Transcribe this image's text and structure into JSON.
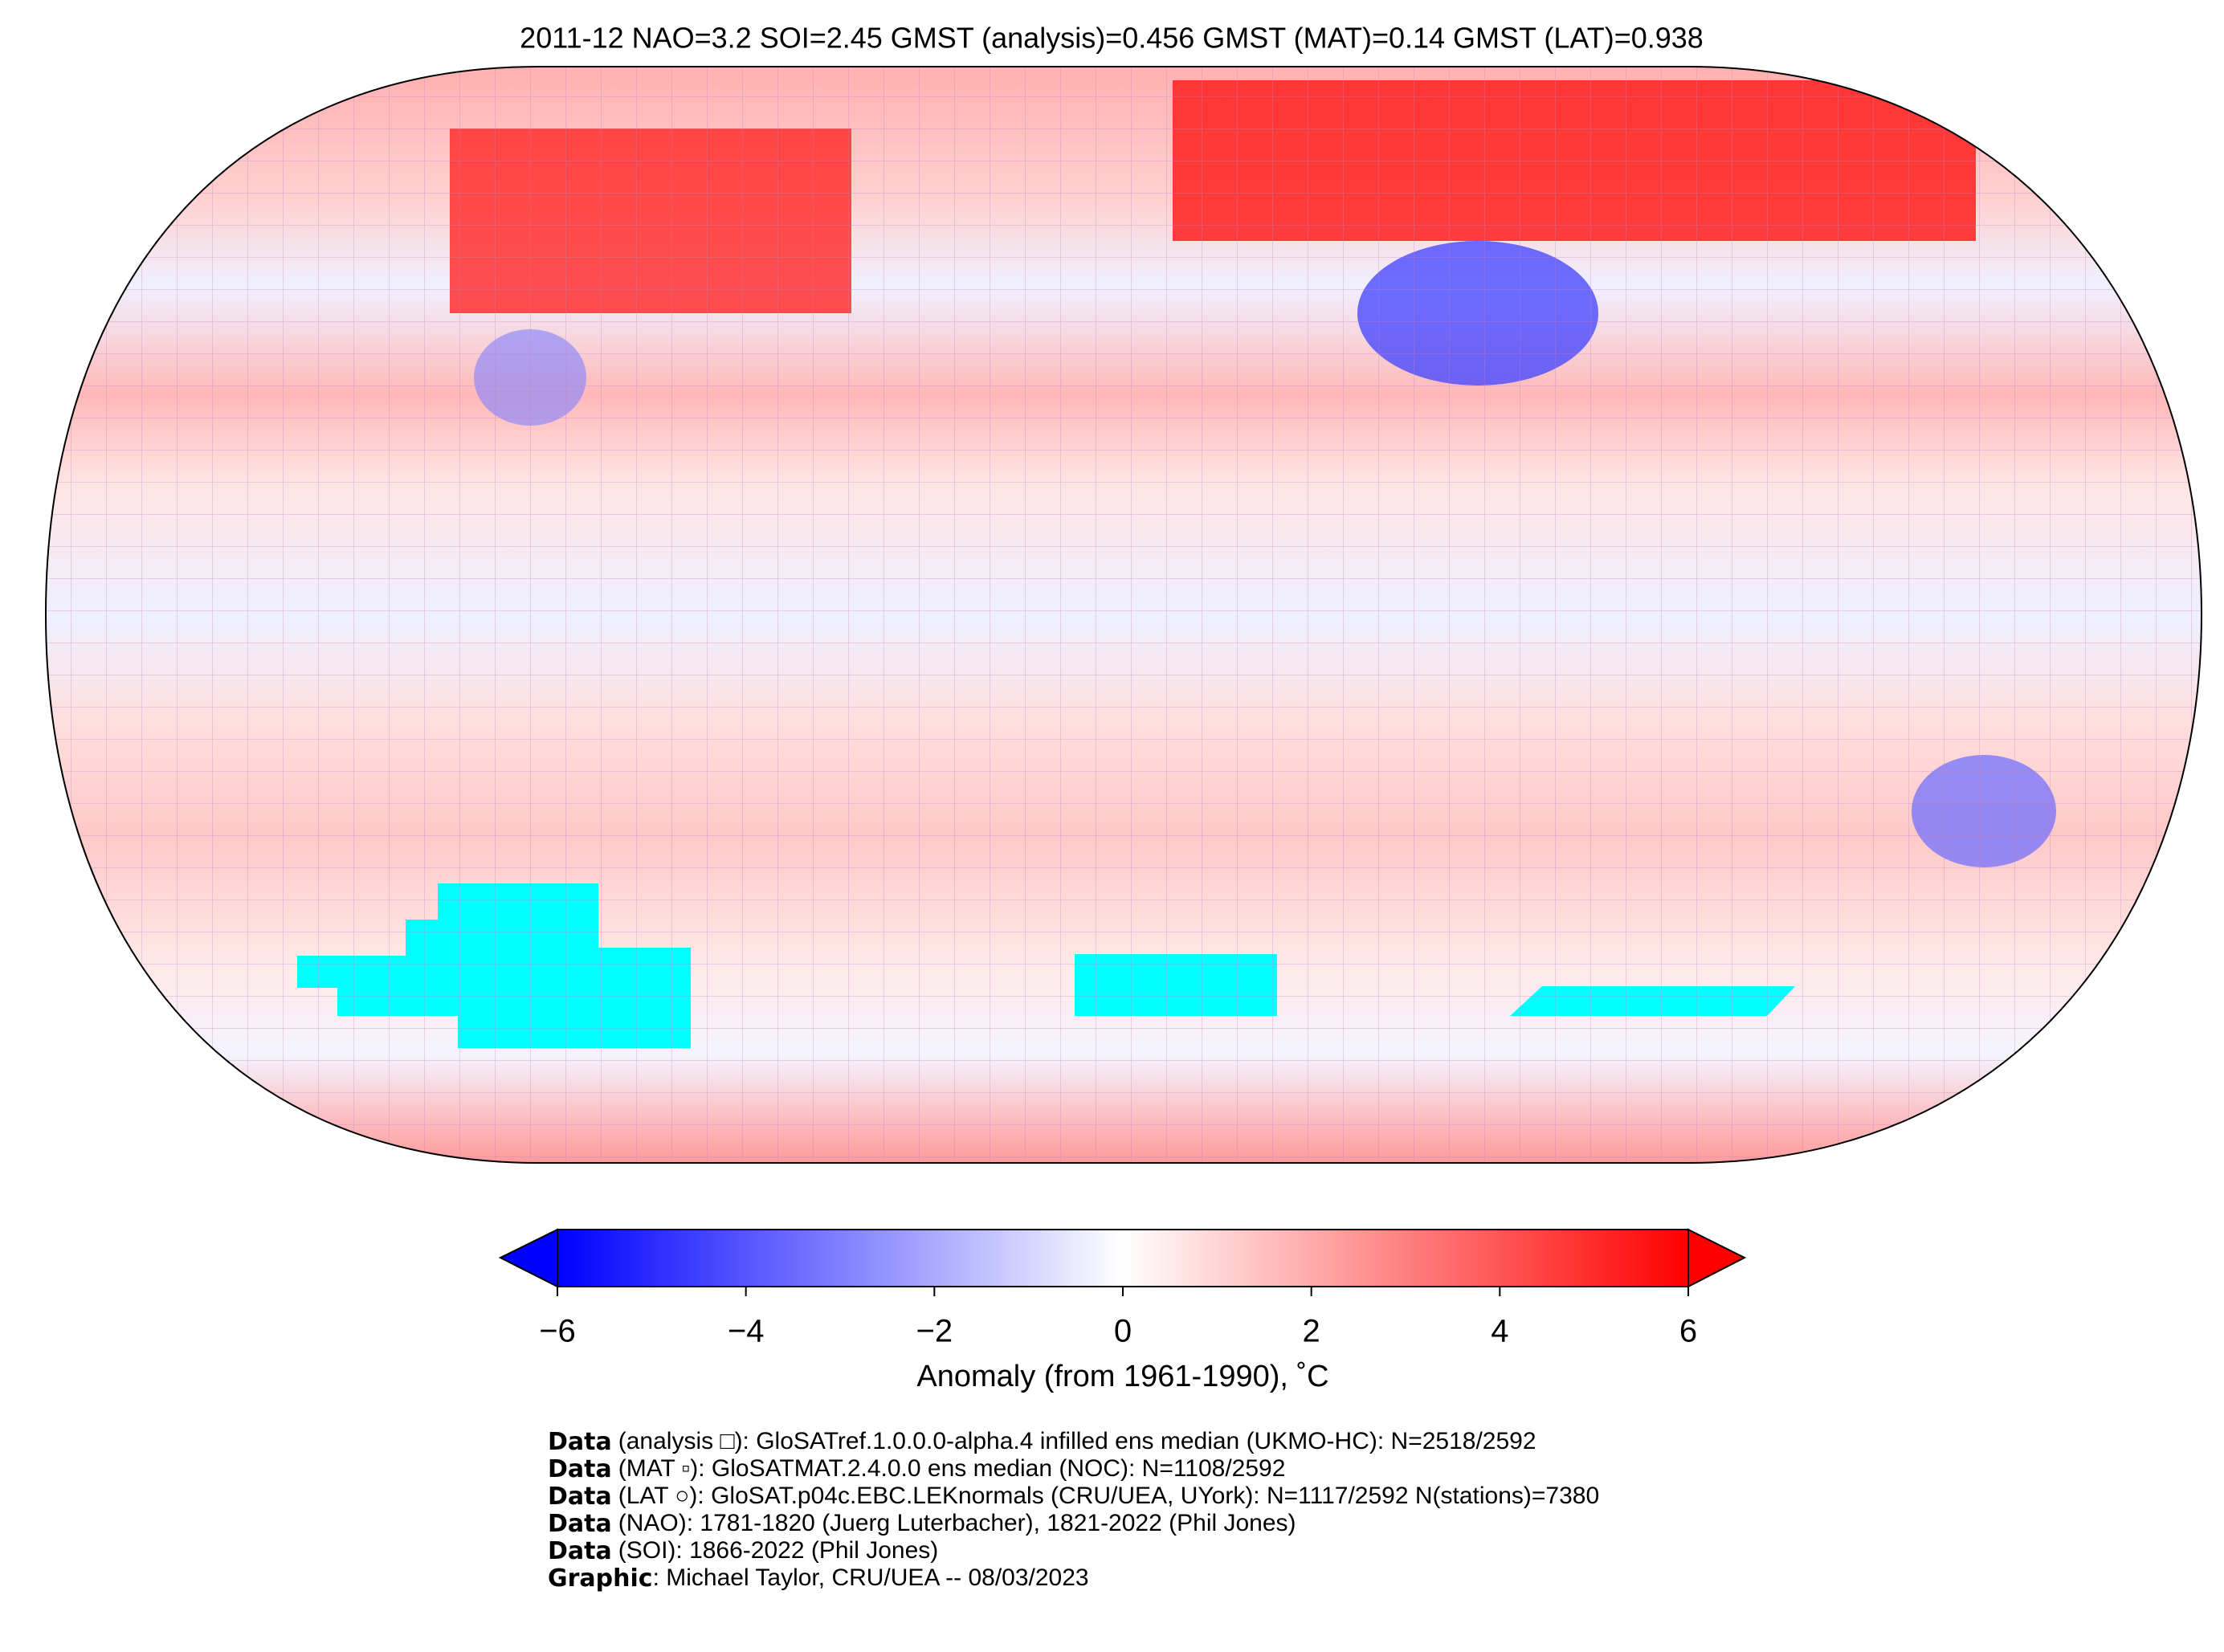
{
  "title": "2011-12 NAO=3.2 SOI=2.45 GMST (analysis)=0.456 GMST (MAT)=0.14 GMST (LAT)=0.938",
  "colorbar": {
    "label": "Anomaly (from 1961-1990), ˚C",
    "range": [
      -6,
      6
    ],
    "ticks": [
      {
        "value": -6,
        "label": "−6"
      },
      {
        "value": -4,
        "label": "−4"
      },
      {
        "value": -2,
        "label": "−2"
      },
      0,
      2,
      4,
      6
    ],
    "colors": [
      "#0000ff",
      "#ffffff",
      "#ff0000"
    ]
  },
  "credits": [
    {
      "label": "Data",
      "text": "(analysis □): GloSATref.1.0.0.0-alpha.4 infilled ens median (UKMO-HC): N=2518/2592"
    },
    {
      "label": "Data",
      "text": "(MAT ▫): GloSATMAT.2.4.0.0 ens median (NOC): N=1108/2592"
    },
    {
      "label": "Data",
      "text": "(LAT ○): GloSAT.p04c.EBC.LEKnormals (CRU/UEA, UYork): N=1117/2592 N(stations)=7380"
    },
    {
      "label": "Data",
      "text": "(NAO): 1781-1820 (Juerg Luterbacher), 1821-2022 (Phil Jones)"
    },
    {
      "label": "Data",
      "text": "(SOI): 1866-2022 (Phil Jones)"
    },
    {
      "label": "Graphic",
      "text": ": Michael Taylor, CRU/UEA -- 08/03/2023"
    }
  ]
}
